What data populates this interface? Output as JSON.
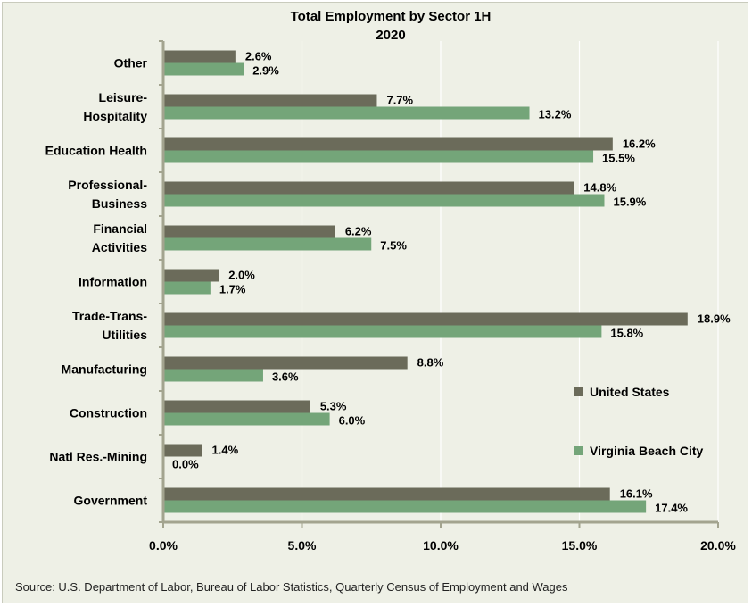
{
  "chart_data": {
    "type": "bar",
    "orientation": "horizontal",
    "title_lines": [
      "Total Employment by Sector  1H",
      "2020"
    ],
    "categories": [
      [
        "Other"
      ],
      [
        "Leisure-",
        "Hospitality"
      ],
      [
        "Education Health"
      ],
      [
        "Professional-",
        "Business"
      ],
      [
        "Financial",
        "Activities"
      ],
      [
        "Information"
      ],
      [
        "Trade-Trans-",
        "Utilities"
      ],
      [
        "Manufacturing"
      ],
      [
        "Construction"
      ],
      [
        "Natl Res.-Mining"
      ],
      [
        "Government"
      ]
    ],
    "series": [
      {
        "name": "United States",
        "color": "#6b6b5a",
        "values": [
          2.6,
          7.7,
          16.2,
          14.8,
          6.2,
          2.0,
          18.9,
          8.8,
          5.3,
          1.4,
          16.1
        ],
        "labels": [
          "2.6%",
          "7.7%",
          "16.2%",
          "14.8%",
          "6.2%",
          "2.0%",
          "18.9%",
          "8.8%",
          "5.3%",
          "1.4%",
          "16.1%"
        ]
      },
      {
        "name": "Virginia Beach City",
        "color": "#74a579",
        "values": [
          2.9,
          13.2,
          15.5,
          15.9,
          7.5,
          1.7,
          15.8,
          3.6,
          6.0,
          0.0,
          17.4
        ],
        "labels": [
          "2.9%",
          "13.2%",
          "15.5%",
          "15.9%",
          "7.5%",
          "1.7%",
          "15.8%",
          "3.6%",
          "6.0%",
          "0.0%",
          "17.4%"
        ]
      }
    ],
    "xlim": [
      0,
      20
    ],
    "xticks": [
      "0.0%",
      "5.0%",
      "10.0%",
      "15.0%",
      "20.0%"
    ],
    "grid": true,
    "legend_position": "right"
  },
  "source": "Source: U.S. Department of Labor, Bureau of Labor Statistics, Quarterly Census of Employment and Wages"
}
